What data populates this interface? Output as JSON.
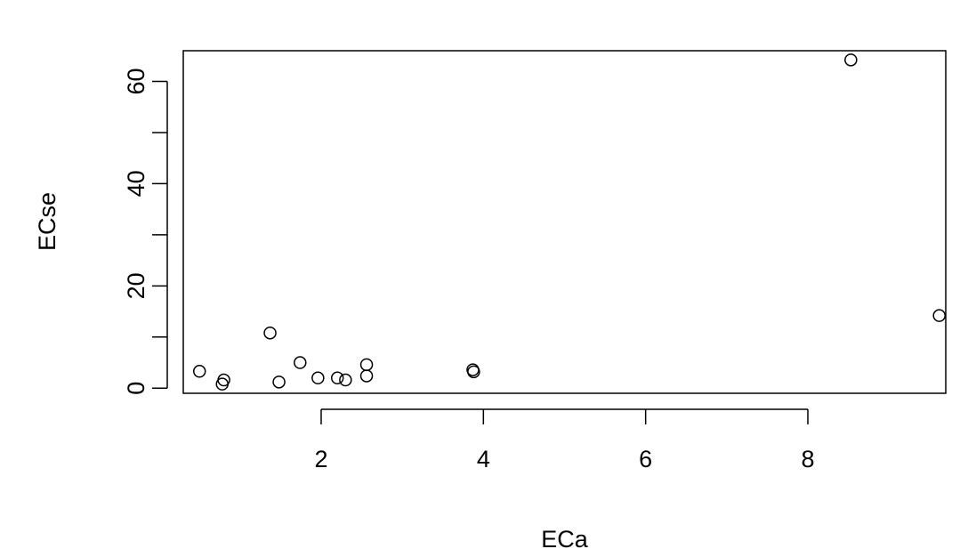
{
  "chart_data": {
    "type": "scatter",
    "title": "",
    "xlabel": "ECa",
    "ylabel": "ECse",
    "xlim": [
      0.3,
      9.7
    ],
    "ylim": [
      -1,
      66
    ],
    "x_ticks": [
      2,
      4,
      6,
      8
    ],
    "x_tick_labels": [
      "2",
      "4",
      "6",
      "8"
    ],
    "y_ticks": [
      0,
      10,
      20,
      30,
      40,
      50,
      60
    ],
    "y_tick_labels": [
      "0",
      "",
      "20",
      "",
      "40",
      "",
      "60"
    ],
    "grid": false,
    "legend": "none",
    "marker": "open-circle",
    "marker_color": "#000000",
    "points": [
      {
        "x": 0.5,
        "y": 3.3
      },
      {
        "x": 0.78,
        "y": 0.8
      },
      {
        "x": 0.8,
        "y": 1.6
      },
      {
        "x": 1.37,
        "y": 10.8
      },
      {
        "x": 1.48,
        "y": 1.2
      },
      {
        "x": 1.74,
        "y": 5.0
      },
      {
        "x": 1.96,
        "y": 2.0
      },
      {
        "x": 2.2,
        "y": 2.0
      },
      {
        "x": 2.3,
        "y": 1.6
      },
      {
        "x": 2.56,
        "y": 4.6
      },
      {
        "x": 2.56,
        "y": 2.4
      },
      {
        "x": 3.87,
        "y": 3.6
      },
      {
        "x": 3.88,
        "y": 3.2
      },
      {
        "x": 8.53,
        "y": 64.2
      },
      {
        "x": 9.62,
        "y": 14.2
      }
    ]
  }
}
